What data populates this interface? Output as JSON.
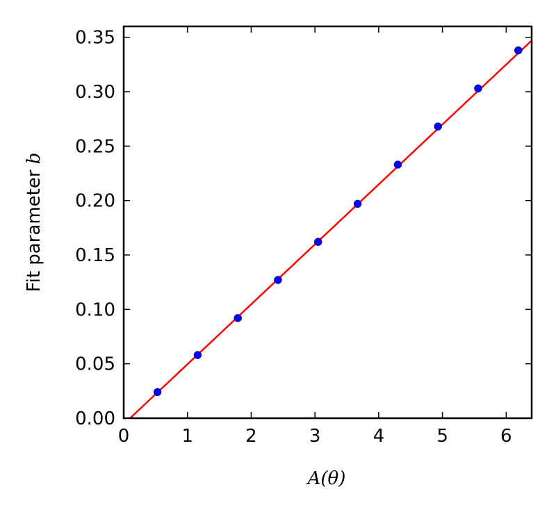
{
  "chart_data": {
    "type": "scatter",
    "xlabel": "A(θ)",
    "ylabel": "Fit parameter b",
    "xlim": [
      0,
      6.4
    ],
    "ylim": [
      0,
      0.36
    ],
    "x_ticks": [
      0,
      1,
      2,
      3,
      4,
      5,
      6
    ],
    "x_tick_labels": [
      "0",
      "1",
      "2",
      "3",
      "4",
      "5",
      "6"
    ],
    "y_ticks": [
      0.0,
      0.05,
      0.1,
      0.15,
      0.2,
      0.25,
      0.3,
      0.35
    ],
    "y_tick_labels": [
      "0.00",
      "0.05",
      "0.10",
      "0.15",
      "0.20",
      "0.25",
      "0.30",
      "0.35"
    ],
    "grid": false,
    "series": [
      {
        "kind": "points",
        "color": "#0000ff",
        "x": [
          0.53,
          1.16,
          1.79,
          2.42,
          3.05,
          3.67,
          4.3,
          4.93,
          5.56,
          6.19
        ],
        "y": [
          0.024,
          0.058,
          0.092,
          0.127,
          0.162,
          0.197,
          0.233,
          0.268,
          0.303,
          0.338
        ]
      },
      {
        "kind": "fit-line",
        "color": "#ff0000",
        "x": [
          0.1,
          6.4
        ],
        "y": [
          0.0,
          0.347
        ]
      }
    ]
  }
}
